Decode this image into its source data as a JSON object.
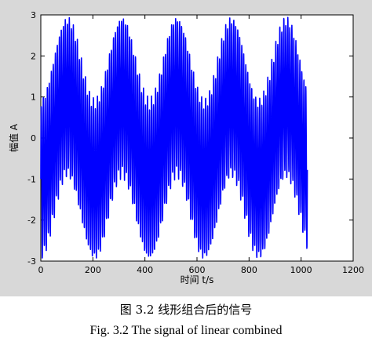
{
  "caption": {
    "chinese": "图 3.2  线形组合后的信号",
    "english": "Fig. 3.2 The signal of linear combined"
  },
  "chart_data": {
    "type": "line",
    "title": "",
    "xlabel": "时间 t/s",
    "ylabel": "幅值 A",
    "xlim": [
      0,
      1200
    ],
    "ylim": [
      -3,
      3
    ],
    "xticks": [
      0,
      200,
      400,
      600,
      800,
      1000,
      1200
    ],
    "yticks": [
      -3,
      -2,
      -1,
      0,
      1,
      2,
      3
    ],
    "grid": false,
    "series": [
      {
        "color": "#0000ff",
        "x_range": [
          0,
          1024
        ],
        "description_free_values": {
          "slow_period": 210,
          "slow_amplitude": 1.0,
          "fast_period": 7.7,
          "fast_amplitude": 1.85
        }
      }
    ]
  }
}
